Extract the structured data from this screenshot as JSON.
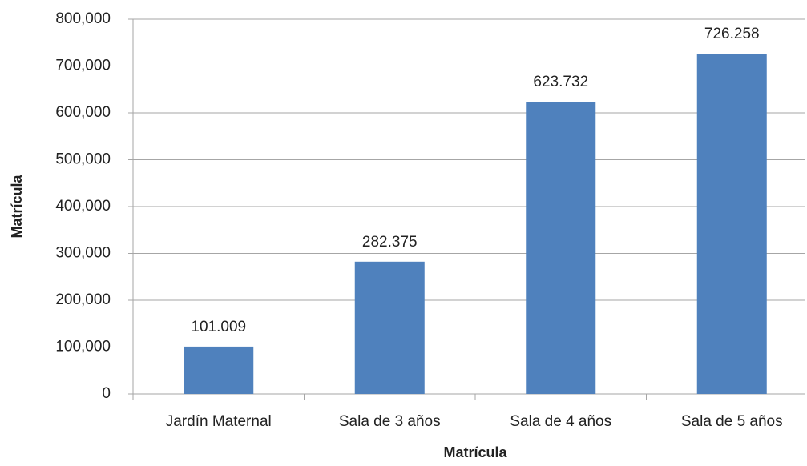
{
  "chart_data": {
    "type": "bar",
    "y_label": "Matrícula",
    "x_label": "Matrícula",
    "categories": [
      "Jardín Maternal",
      "Sala de 3 años",
      "Sala de 4 años",
      "Sala de 5 años"
    ],
    "values": [
      101009,
      282375,
      623732,
      726258
    ],
    "value_labels": [
      "101.009",
      "282.375",
      "623.732",
      "726.258"
    ],
    "color": "#4f81bd",
    "ylim": [
      0,
      800000
    ],
    "yticks": [
      0,
      {
        "value": 100000,
        "label": "100,000"
      },
      {
        "value": 200000,
        "label": "200,000"
      },
      {
        "value": 300000,
        "label": "300,000"
      },
      {
        "value": 400000,
        "label": "400,000"
      },
      {
        "value": 500000,
        "label": "500,000"
      },
      {
        "value": 600000,
        "label": "600,000"
      },
      {
        "value": 700000,
        "label": "700,000"
      },
      {
        "value": 800000,
        "label": "800,000"
      }
    ],
    "grid": true
  }
}
